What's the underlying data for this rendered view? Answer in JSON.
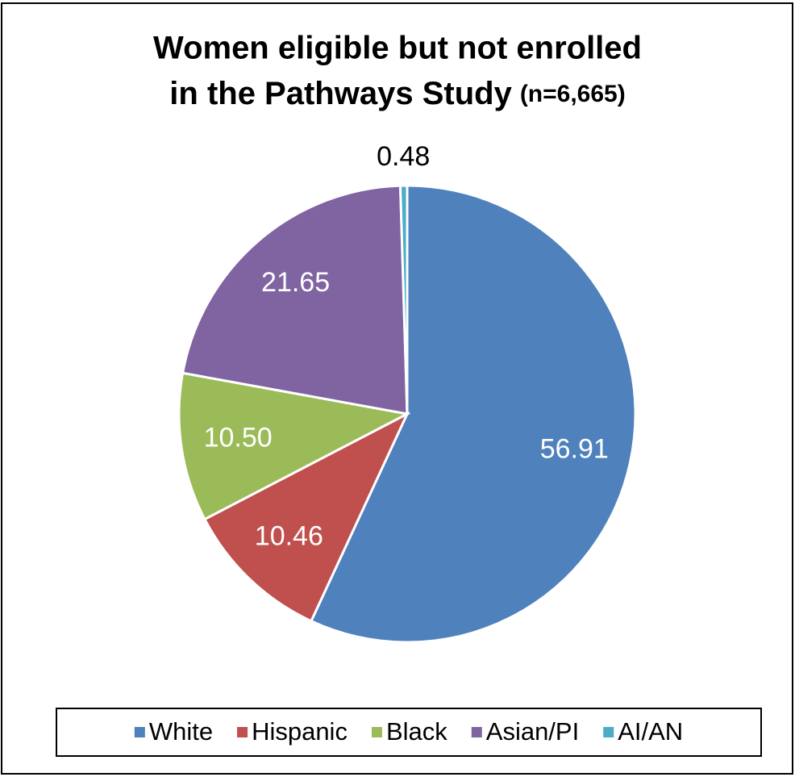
{
  "chart_data": {
    "type": "pie",
    "title": [
      "Women eligible but not enrolled",
      "in the Pathways Study"
    ],
    "title_note": "(n=6,665)",
    "categories": [
      "White",
      "Hispanic",
      "Black",
      "Asian/PI",
      "AI/AN"
    ],
    "values": [
      56.91,
      10.46,
      10.5,
      21.65,
      0.48
    ],
    "value_labels": [
      "56.91",
      "10.46",
      "10.50",
      "21.65",
      "0.48"
    ],
    "colors": [
      "#4f81bd",
      "#c0504d",
      "#9bbb59",
      "#8064a2",
      "#4bacc6"
    ],
    "legend": "bottom"
  }
}
